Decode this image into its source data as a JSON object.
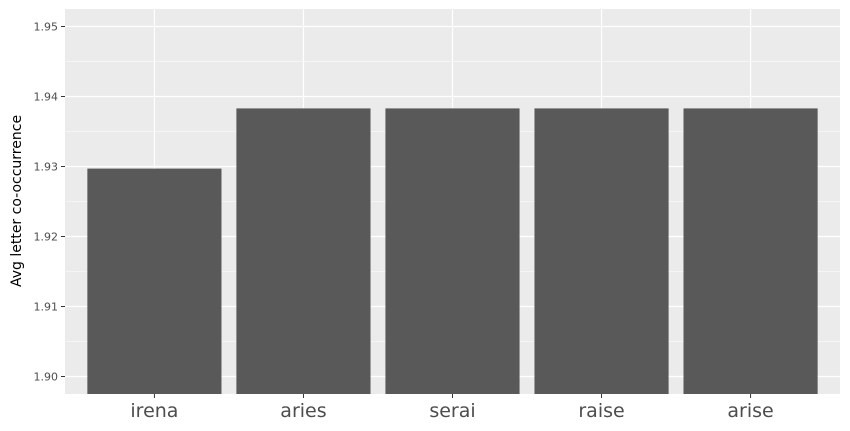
{
  "chart_data": {
    "type": "bar",
    "title": "",
    "xlabel": "",
    "ylabel": "Avg letter co-occurrence",
    "categories": [
      "irena",
      "aries",
      "serai",
      "raise",
      "arise"
    ],
    "values": [
      1.9297,
      1.9383,
      1.9383,
      1.9383,
      1.9383
    ],
    "ylim": [
      1.8975,
      1.9525
    ],
    "yticks": [
      1.9,
      1.91,
      1.92,
      1.93,
      1.94,
      1.95
    ],
    "ytick_labels": [
      "1.90",
      "1.91",
      "1.92",
      "1.93",
      "1.94",
      "1.95"
    ],
    "grid": true,
    "legend": "none",
    "colors": {
      "bar": "#595959",
      "panel": "#ebebeb",
      "grid": "#ffffff"
    }
  }
}
